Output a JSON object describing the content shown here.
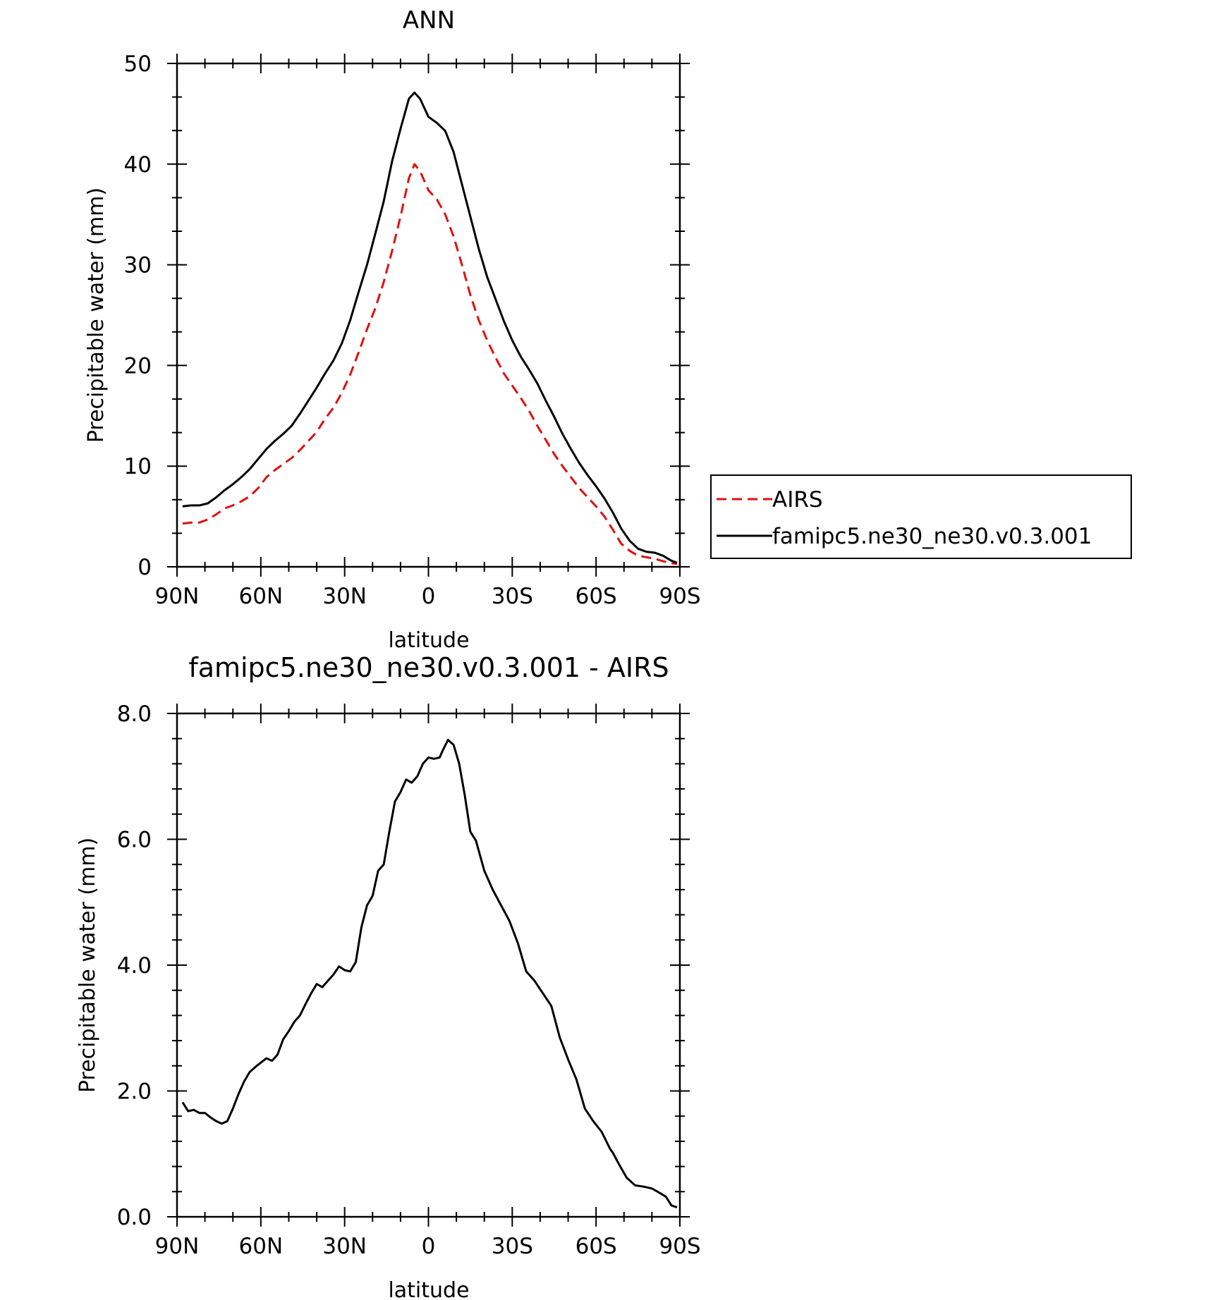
{
  "chart_data": [
    {
      "type": "line",
      "title": "ANN",
      "xlabel": "latitude",
      "ylabel": "Precipitable water (mm)",
      "xlim": [
        90,
        -90
      ],
      "ylim": [
        0,
        50
      ],
      "x_ticks": [
        90,
        60,
        30,
        0,
        -30,
        -60,
        -90
      ],
      "x_tick_labels": [
        "90N",
        "60N",
        "30N",
        "0",
        "30S",
        "60S",
        "90S"
      ],
      "y_ticks": [
        0,
        10,
        20,
        30,
        40,
        50
      ],
      "y_tick_labels": [
        "0",
        "10",
        "20",
        "30",
        "40",
        "50"
      ],
      "legend_position": "right",
      "series": [
        {
          "name": "AIRS",
          "color": "#e01010",
          "dash": "dashed",
          "x": [
            88,
            85,
            82,
            79,
            76,
            73,
            70,
            67,
            64,
            61,
            58,
            55,
            52,
            49,
            46,
            43,
            40,
            37,
            34,
            31,
            28,
            25,
            22,
            19,
            16,
            13,
            10,
            7,
            5,
            3,
            0,
            -3,
            -6,
            -9,
            -12,
            -15,
            -18,
            -21,
            -24,
            -27,
            -30,
            -33,
            -36,
            -39,
            -42,
            -45,
            -48,
            -51,
            -54,
            -57,
            -60,
            -63,
            -66,
            -69,
            -72,
            -75,
            -78,
            -81,
            -84,
            -87,
            -89
          ],
          "values": [
            4.3,
            4.4,
            4.4,
            4.7,
            5.2,
            5.8,
            6.1,
            6.5,
            7.0,
            7.8,
            8.9,
            9.6,
            10.2,
            10.8,
            11.6,
            12.5,
            13.4,
            14.7,
            15.8,
            17.3,
            19.1,
            21.3,
            23.6,
            25.7,
            28.3,
            31.4,
            34.8,
            38.6,
            40.0,
            39.3,
            37.4,
            36.5,
            35.0,
            32.8,
            30.0,
            27.0,
            24.5,
            22.5,
            20.8,
            19.2,
            18.0,
            16.8,
            15.5,
            14.0,
            12.6,
            11.2,
            10.0,
            8.9,
            7.8,
            6.9,
            6.0,
            5.0,
            3.7,
            2.3,
            1.6,
            1.1,
            0.95,
            0.8,
            0.55,
            0.35,
            0.3
          ]
        },
        {
          "name": "famipc5.ne30_ne30.v0.3.001",
          "color": "#000000",
          "dash": "solid",
          "x": [
            88,
            85,
            82,
            79,
            76,
            73,
            70,
            67,
            64,
            61,
            58,
            55,
            52,
            49,
            46,
            43,
            40,
            37,
            34,
            31,
            28,
            25,
            22,
            19,
            16,
            13,
            10,
            7,
            5,
            3,
            0,
            -3,
            -6,
            -9,
            -12,
            -15,
            -18,
            -21,
            -24,
            -27,
            -30,
            -33,
            -36,
            -39,
            -42,
            -45,
            -48,
            -51,
            -54,
            -57,
            -60,
            -63,
            -66,
            -69,
            -72,
            -75,
            -78,
            -81,
            -84,
            -87,
            -89
          ],
          "values": [
            6.0,
            6.1,
            6.1,
            6.3,
            6.9,
            7.6,
            8.2,
            8.9,
            9.7,
            10.7,
            11.7,
            12.5,
            13.2,
            14.0,
            15.2,
            16.5,
            17.8,
            19.2,
            20.5,
            22.2,
            24.5,
            27.3,
            30.0,
            33.1,
            36.3,
            40.3,
            43.5,
            46.5,
            47.1,
            46.5,
            44.7,
            44.1,
            43.3,
            41.2,
            38.0,
            34.8,
            31.6,
            28.8,
            26.6,
            24.4,
            22.5,
            20.9,
            19.6,
            18.2,
            16.5,
            14.9,
            13.2,
            11.7,
            10.3,
            9.1,
            8.0,
            6.8,
            5.4,
            3.8,
            2.6,
            1.8,
            1.5,
            1.4,
            1.1,
            0.6,
            0.4
          ]
        }
      ]
    },
    {
      "type": "line",
      "title": "famipc5.ne30_ne30.v0.3.001 - AIRS",
      "xlabel": "latitude",
      "ylabel": "Precipitable water (mm)",
      "xlim": [
        90,
        -90
      ],
      "ylim": [
        0,
        8
      ],
      "x_ticks": [
        90,
        60,
        30,
        0,
        -30,
        -60,
        -90
      ],
      "x_tick_labels": [
        "90N",
        "60N",
        "30N",
        "0",
        "30S",
        "60S",
        "90S"
      ],
      "y_ticks": [
        0,
        2,
        4,
        6,
        8
      ],
      "y_tick_labels": [
        "0.0",
        "2.0",
        "4.0",
        "6.0",
        "8.0"
      ],
      "series": [
        {
          "color": "#000000",
          "dash": "solid",
          "x": [
            88,
            86,
            84,
            82,
            80,
            78,
            76,
            74,
            72,
            70,
            68,
            66,
            64,
            62,
            60,
            58,
            56,
            54,
            52,
            50,
            48,
            46,
            44,
            42,
            40,
            38,
            36,
            34,
            32,
            30,
            28,
            26,
            24,
            22,
            20,
            18,
            16,
            14,
            12,
            10,
            8,
            6,
            4,
            2,
            0,
            -2,
            -4,
            -5,
            -7,
            -9,
            -11,
            -13,
            -15,
            -17,
            -20,
            -23,
            -26,
            -29,
            -32,
            -35,
            -38,
            -41,
            -44,
            -47,
            -50,
            -53,
            -56,
            -59,
            -62,
            -65,
            -66,
            -68,
            -71,
            -74,
            -77,
            -80,
            -82,
            -85,
            -87,
            -89
          ],
          "values": [
            1.82,
            1.68,
            1.7,
            1.65,
            1.65,
            1.58,
            1.52,
            1.48,
            1.52,
            1.72,
            1.95,
            2.15,
            2.3,
            2.38,
            2.45,
            2.52,
            2.48,
            2.58,
            2.82,
            2.95,
            3.1,
            3.2,
            3.38,
            3.55,
            3.7,
            3.65,
            3.75,
            3.85,
            3.98,
            3.92,
            3.9,
            4.05,
            4.6,
            4.95,
            5.1,
            5.5,
            5.6,
            6.12,
            6.6,
            6.75,
            6.95,
            6.9,
            7.0,
            7.2,
            7.3,
            7.28,
            7.3,
            7.4,
            7.58,
            7.5,
            7.2,
            6.7,
            6.12,
            5.98,
            5.5,
            5.2,
            4.95,
            4.7,
            4.35,
            3.9,
            3.75,
            3.55,
            3.35,
            2.85,
            2.5,
            2.18,
            1.72,
            1.52,
            1.35,
            1.08,
            1.02,
            0.85,
            0.62,
            0.5,
            0.48,
            0.45,
            0.4,
            0.32,
            0.18,
            0.15
          ]
        }
      ]
    }
  ]
}
